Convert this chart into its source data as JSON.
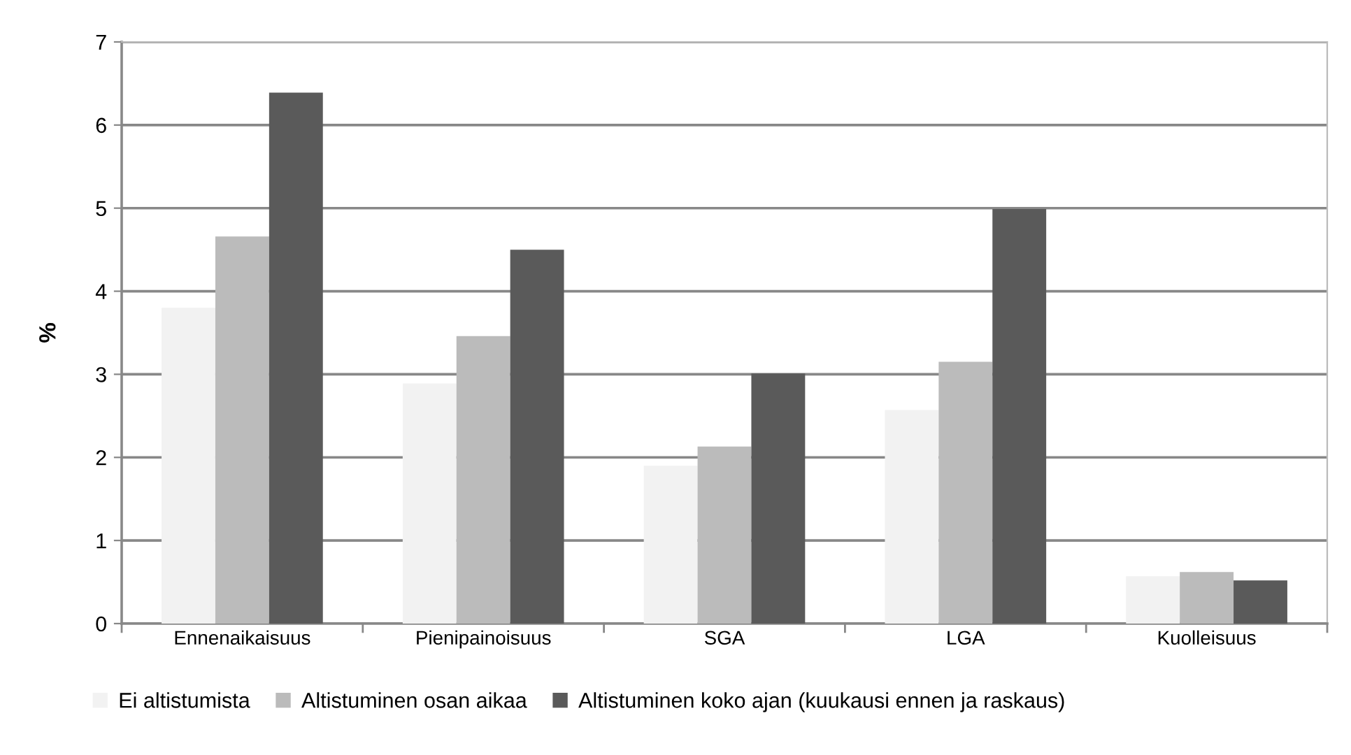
{
  "chart_data": {
    "type": "bar",
    "ylabel": "%",
    "categories": [
      "Ennenaikaisuus",
      "Pienipainoisuus",
      "SGA",
      "LGA",
      "Kuolleisuus"
    ],
    "series": [
      {
        "name": "Ei altistumista",
        "color": "#f2f2f2",
        "values": [
          3.8,
          2.89,
          1.9,
          2.57,
          0.57
        ]
      },
      {
        "name": "Altistuminen osan aikaa",
        "color": "#bbbbbb",
        "values": [
          4.66,
          3.46,
          2.13,
          3.15,
          0.62
        ]
      },
      {
        "name": "Altistuminen koko ajan (kuukausi ennen ja raskaus)",
        "color": "#5a5a5a",
        "values": [
          6.39,
          4.5,
          3.01,
          4.99,
          0.52
        ]
      }
    ],
    "ylim": [
      0,
      7
    ],
    "yticks": [
      0,
      1,
      2,
      3,
      4,
      5,
      6,
      7
    ],
    "grid": "y",
    "legend": "bottom left"
  }
}
